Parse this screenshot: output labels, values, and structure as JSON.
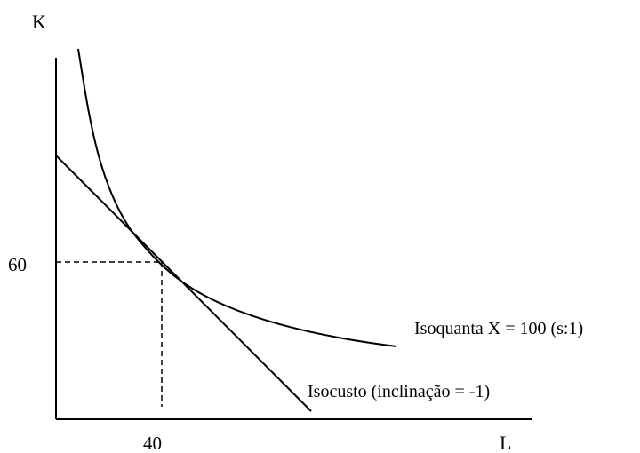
{
  "axes": {
    "y_label": "K",
    "x_label": "L"
  },
  "ticks": {
    "x_value": "40",
    "y_value": "60"
  },
  "curves": {
    "isoquant_label": "Isoquanta X = 100 (s:1)",
    "isocost_label": "Isocusto (inclinação = -1)"
  },
  "colors": {
    "ink": "#000000",
    "background": "#ffffff"
  }
}
